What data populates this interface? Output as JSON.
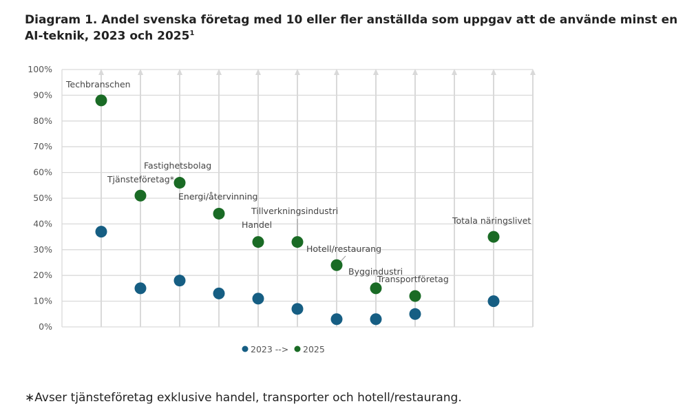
{
  "title": "Diagram 1. Andel svenska företag med 10 eller fler anställda som uppgav att de använde minst en AI-teknik, 2023 och 2025",
  "title_footnote_mark": "1",
  "footnote": "∗Avser tjänsteföretag exklusive handel, transporter och hotell/restaurang.",
  "chart_data": {
    "type": "scatter",
    "ylim": [
      0,
      100
    ],
    "yticks": [
      "0%",
      "10%",
      "20%",
      "30%",
      "40%",
      "50%",
      "60%",
      "70%",
      "80%",
      "90%",
      "100%"
    ],
    "grid": true,
    "legend_placement": "bottom",
    "categories": [
      "Techbranschen",
      "Tjänsteföretag*",
      "Fastighetsbolag",
      "Energi/återvinning",
      "Handel",
      "Tillverkningsindustri",
      "Hotell/restaurang",
      "Byggindustri",
      "Transportföretag",
      "",
      "Totala näringslivet"
    ],
    "series": [
      {
        "name": "2023 -->",
        "color": "#165e83",
        "values": [
          37,
          15,
          18,
          13,
          11,
          7,
          3,
          3,
          5,
          null,
          10
        ]
      },
      {
        "name": "2025",
        "color": "#1a6b25",
        "values": [
          88,
          51,
          56,
          44,
          33,
          33,
          24,
          15,
          12,
          null,
          35
        ]
      }
    ]
  }
}
